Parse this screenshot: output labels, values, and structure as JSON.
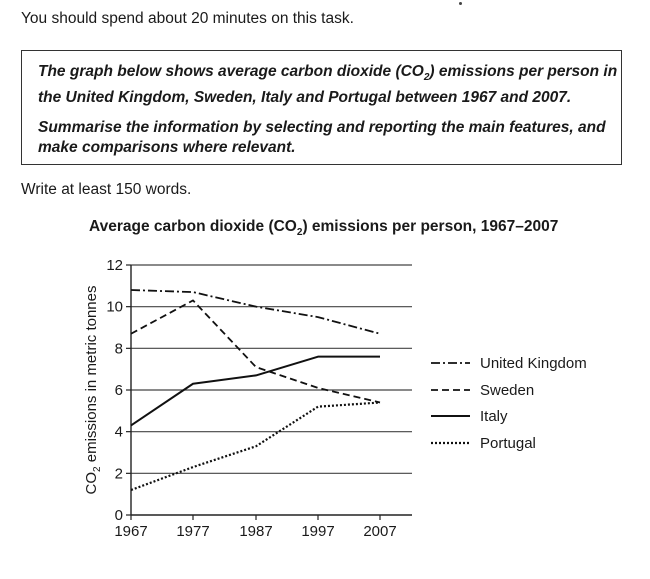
{
  "intro": "You should spend about 20 minutes on this task.",
  "task": {
    "paragraph1_pre": "The graph below shows average carbon dioxide (CO",
    "paragraph1_sub": "2",
    "paragraph1_post": ") emissions per person in the United Kingdom, Sweden, Italy and Portugal between 1967 and 2007.",
    "paragraph2": "Summarise the information by selecting and reporting the main features, and make comparisons where relevant."
  },
  "word_requirement": "Write at least 150 words.",
  "chart_data": {
    "type": "line",
    "title": "Average carbon dioxide (CO₂) emissions per person, 1967–2007",
    "title_pre": "Average carbon dioxide (CO",
    "title_sub": "2",
    "title_post": ") emissions per person, 1967–2007",
    "xlabel": "",
    "ylabel": "CO₂ emissions in metric tonnes",
    "ylabel_pre": "CO",
    "ylabel_sub": "2",
    "ylabel_post": " emissions in metric tonnes",
    "x": [
      1967,
      1977,
      1987,
      1997,
      2007
    ],
    "categories": [
      "1967",
      "1977",
      "1987",
      "1997",
      "2007"
    ],
    "ylim": [
      0,
      12
    ],
    "yticks": [
      0,
      2,
      4,
      6,
      8,
      10,
      12
    ],
    "grid": true,
    "legend_position": "right",
    "series": [
      {
        "name": "United Kingdom",
        "style": "dash-dot",
        "values": [
          10.8,
          10.7,
          10.0,
          9.5,
          8.7
        ]
      },
      {
        "name": "Sweden",
        "style": "dashed",
        "values": [
          8.7,
          10.3,
          7.1,
          6.1,
          5.4
        ]
      },
      {
        "name": "Italy",
        "style": "solid",
        "values": [
          4.3,
          6.3,
          6.7,
          7.6,
          7.6
        ]
      },
      {
        "name": "Portugal",
        "style": "dotted",
        "values": [
          1.2,
          2.3,
          3.3,
          5.2,
          5.4
        ]
      }
    ]
  }
}
